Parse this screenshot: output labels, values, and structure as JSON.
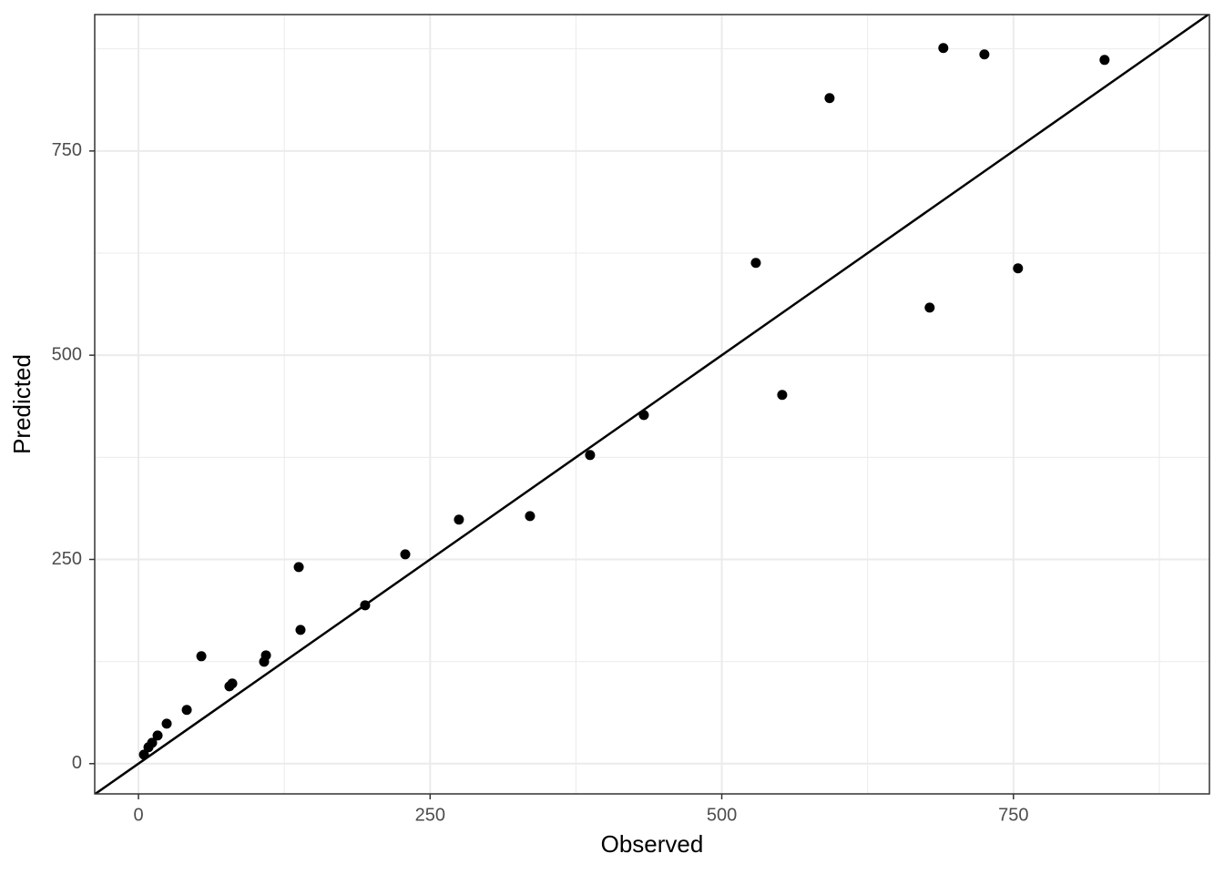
{
  "chart_data": {
    "type": "scatter",
    "x_label": "Observed",
    "y_label": "Predicted",
    "series": [
      {
        "color": "#000000",
        "x": [
          4.7,
          8.6,
          11.7,
          16.4,
          24.2,
          41.4,
          53.9,
          78.0,
          80.4,
          107.7,
          109.3,
          137.4,
          138.9,
          194.3,
          228.7,
          274.7,
          335.6,
          387.1,
          433.2,
          529.2,
          551.8,
          592.4,
          678.2,
          689.9,
          725.1,
          753.9,
          828.1
        ],
        "values": [
          11.1,
          20.1,
          25.6,
          34.5,
          49.0,
          65.8,
          131.5,
          94.7,
          98.1,
          124.8,
          132.6,
          240.7,
          163.8,
          193.9,
          256.3,
          298.7,
          303.1,
          377.8,
          426.8,
          613.0,
          451.4,
          814.7,
          558.3,
          876.0,
          868.2,
          606.3,
          861.5
        ]
      }
    ],
    "reference_line": {
      "slope": 1,
      "intercept": 0,
      "color": "#000000"
    },
    "xlim": [
      -37.5,
      918
    ],
    "ylim": [
      -37,
      917
    ],
    "xticks": [
      0,
      250,
      500,
      750
    ],
    "yticks": [
      0,
      250,
      500,
      750
    ],
    "x_minor_ticks": [
      125,
      375,
      625,
      875
    ],
    "y_minor_ticks": [
      125,
      375,
      625,
      875
    ],
    "grid": true
  }
}
